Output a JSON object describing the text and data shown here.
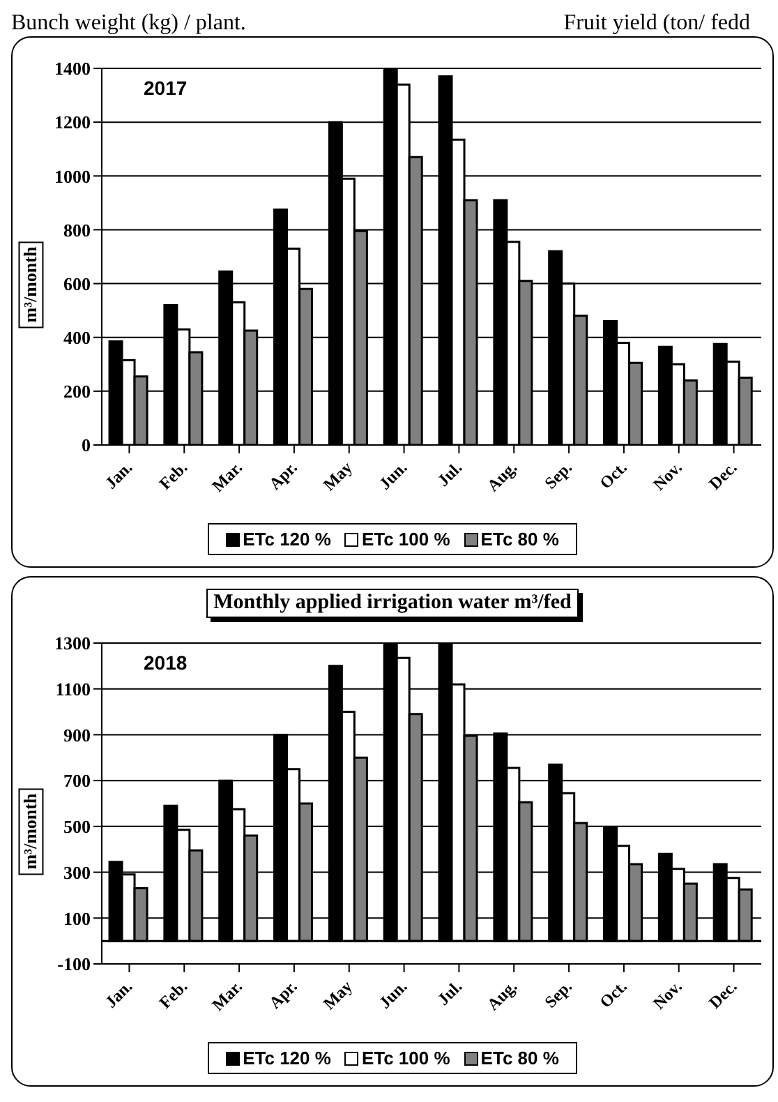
{
  "chart_data": [
    {
      "type": "bar",
      "annotations": [
        "Bunch weight (kg) / plant.",
        "Fruit yield (ton/ fedd",
        "2017"
      ],
      "ylabel": "m³/month",
      "categories": [
        "Jan.",
        "Feb.",
        "Mar.",
        "Apr.",
        "May",
        "Jun.",
        "Jul.",
        "Aug.",
        "Sep.",
        "Oct.",
        "Nov.",
        "Dec."
      ],
      "series": [
        {
          "name": "ETc  120 %",
          "color": "#000000",
          "values": [
            385,
            520,
            645,
            875,
            1200,
            1400,
            1370,
            910,
            720,
            460,
            365,
            375
          ]
        },
        {
          "name": "ETc  100 %",
          "color": "#ffffff",
          "values": [
            315,
            430,
            530,
            730,
            990,
            1340,
            1135,
            755,
            600,
            380,
            300,
            310
          ]
        },
        {
          "name": "ETc  80 %",
          "color": "#808080",
          "values": [
            255,
            345,
            425,
            580,
            795,
            1070,
            910,
            610,
            480,
            305,
            240,
            250
          ]
        }
      ],
      "ylim": [
        0,
        1400
      ],
      "yticks": [
        0,
        200,
        400,
        600,
        800,
        1000,
        1200,
        1400
      ],
      "grid": "y",
      "legend": "bottom"
    },
    {
      "type": "bar",
      "title": "Monthly applied irrigation water  m³/fed",
      "annotations": [
        "2018"
      ],
      "ylabel": "m³/month",
      "categories": [
        "Jan.",
        "Feb.",
        "Mar.",
        "Apr.",
        "May",
        "Jun.",
        "Jul.",
        "Aug.",
        "Sep.",
        "Oct.",
        "Nov.",
        "Dec."
      ],
      "series": [
        {
          "name": "ETc  120 %",
          "color": "#000000",
          "values": [
            345,
            590,
            700,
            900,
            1200,
            1300,
            1300,
            905,
            770,
            495,
            380,
            335
          ]
        },
        {
          "name": "ETc  100 %",
          "color": "#ffffff",
          "values": [
            290,
            485,
            575,
            750,
            1000,
            1235,
            1120,
            755,
            645,
            415,
            315,
            275
          ]
        },
        {
          "name": "ETc  80 %",
          "color": "#808080",
          "values": [
            230,
            395,
            460,
            600,
            800,
            990,
            895,
            605,
            515,
            335,
            250,
            225
          ]
        }
      ],
      "ylim": [
        -100,
        1300
      ],
      "yticks": [
        -100,
        100,
        300,
        500,
        700,
        900,
        1100,
        1300
      ],
      "grid": "y",
      "legend": "bottom",
      "ref_lines": [
        {
          "axis": "y",
          "value": 0
        }
      ]
    }
  ]
}
